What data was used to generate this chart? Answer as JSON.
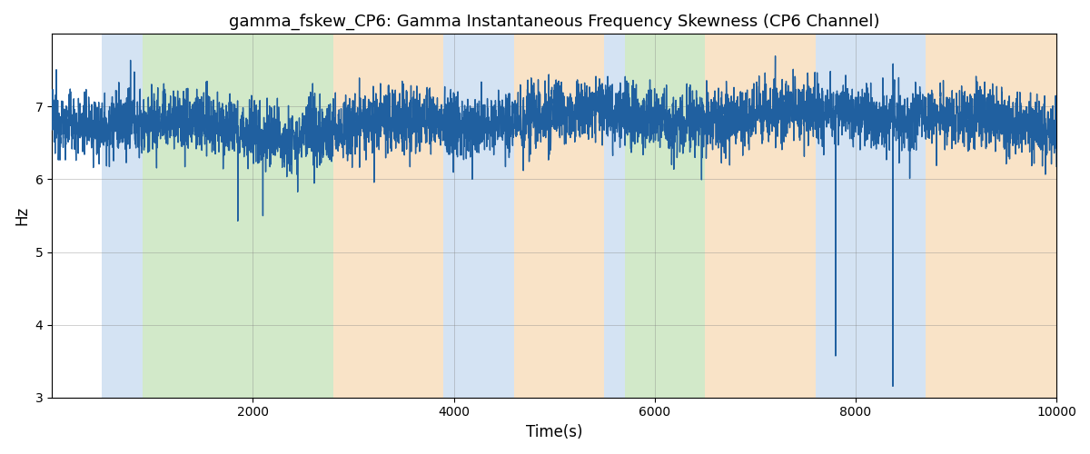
{
  "title": "gamma_fskew_CP6: Gamma Instantaneous Frequency Skewness (CP6 Channel)",
  "xlabel": "Time(s)",
  "ylabel": "Hz",
  "xlim": [
    0,
    10000
  ],
  "ylim": [
    3,
    8
  ],
  "yticks": [
    3,
    4,
    5,
    6,
    7
  ],
  "xticks": [
    2000,
    4000,
    6000,
    8000,
    10000
  ],
  "line_color": "#2060a0",
  "line_width": 1.0,
  "bands": [
    {
      "xmin": 500,
      "xmax": 900,
      "color": "#aac8e8",
      "alpha": 0.5
    },
    {
      "xmin": 900,
      "xmax": 2800,
      "color": "#90c878",
      "alpha": 0.4
    },
    {
      "xmin": 2800,
      "xmax": 3900,
      "color": "#f5c890",
      "alpha": 0.5
    },
    {
      "xmin": 3900,
      "xmax": 4600,
      "color": "#aac8e8",
      "alpha": 0.5
    },
    {
      "xmin": 4600,
      "xmax": 5500,
      "color": "#f5c890",
      "alpha": 0.5
    },
    {
      "xmin": 5500,
      "xmax": 5700,
      "color": "#aac8e8",
      "alpha": 0.5
    },
    {
      "xmin": 5700,
      "xmax": 6500,
      "color": "#90c878",
      "alpha": 0.4
    },
    {
      "xmin": 6500,
      "xmax": 7600,
      "color": "#f5c890",
      "alpha": 0.5
    },
    {
      "xmin": 7600,
      "xmax": 8700,
      "color": "#aac8e8",
      "alpha": 0.5
    },
    {
      "xmin": 8700,
      "xmax": 10000,
      "color": "#f5c890",
      "alpha": 0.5
    }
  ],
  "seed": 12345,
  "n_points": 5000,
  "figsize": [
    12,
    5
  ],
  "dpi": 100
}
